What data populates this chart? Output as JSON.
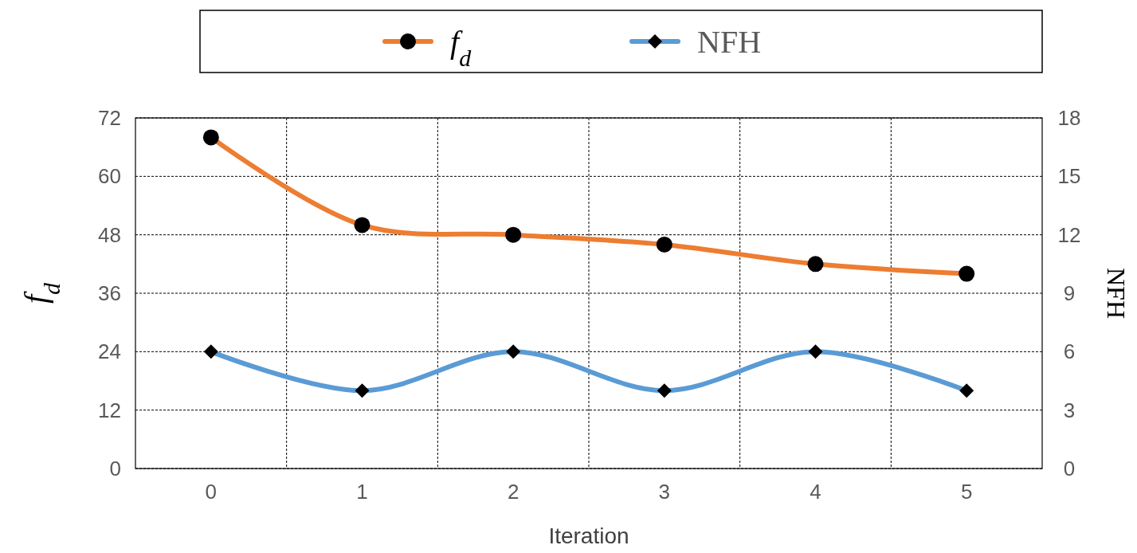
{
  "chart_data": {
    "type": "line",
    "xlabel": "Iteration",
    "ylabel": "f$_{d}$",
    "y2label": "NFH",
    "categories": [
      "0",
      "1",
      "2",
      "3",
      "4",
      "5"
    ],
    "series": [
      {
        "name": "f$_{d}$",
        "color": "#ed7d31",
        "marker": "circle",
        "values": [
          68,
          50,
          48,
          46,
          42,
          40
        ]
      },
      {
        "name": "NFH",
        "color": "#5b9bd5",
        "marker": "diamond",
        "axis": "y2",
        "values": [
          6,
          4,
          6,
          4,
          6,
          4
        ]
      }
    ],
    "ylim": [
      0,
      72
    ],
    "yticks": [
      0,
      12,
      24,
      36,
      48,
      60,
      72
    ],
    "y2lim": [
      0,
      18
    ],
    "y2ticks": [
      0,
      3,
      6,
      9,
      12,
      15,
      18
    ],
    "grid": true,
    "legend": "top",
    "line_style": "solid"
  }
}
